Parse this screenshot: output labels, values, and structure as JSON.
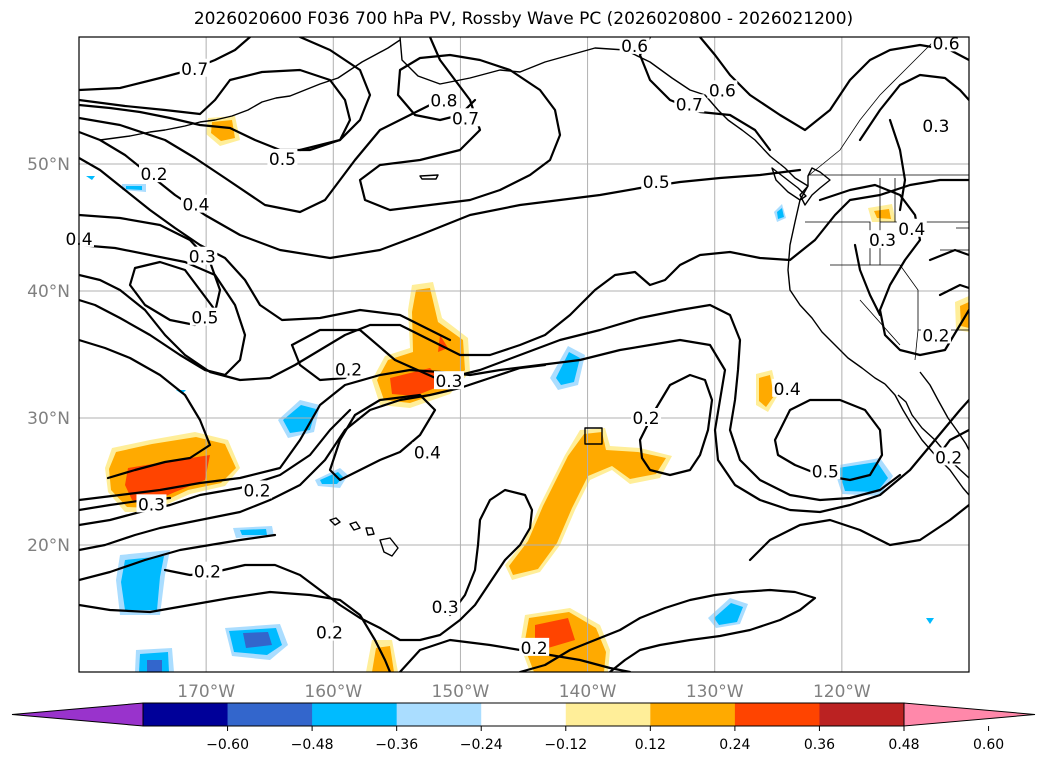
{
  "title": "2026020600 F036 700 hPa PV, Rossby Wave PC (2026020800 - 2026021200)",
  "map": {
    "lon_range": [
      -180,
      -110
    ],
    "lat_range": [
      10,
      60
    ],
    "lat_labels": [
      {
        "lat": 50,
        "text": "50°N"
      },
      {
        "lat": 40,
        "text": "40°N"
      },
      {
        "lat": 30,
        "text": "30°N"
      },
      {
        "lat": 20,
        "text": "20°N"
      }
    ],
    "lon_labels": [
      {
        "lon": -170,
        "text": "170°W"
      },
      {
        "lon": -160,
        "text": "160°W"
      },
      {
        "lon": -150,
        "text": "150°W"
      },
      {
        "lon": -140,
        "text": "140°W"
      },
      {
        "lon": -130,
        "text": "130°W"
      },
      {
        "lon": -120,
        "text": "120°W"
      }
    ],
    "contour_labels": [
      {
        "text": "0.6",
        "lon": -136.3,
        "lat": 59.3
      },
      {
        "text": "0.6",
        "lon": -111.8,
        "lat": 59.5
      },
      {
        "text": "0.7",
        "lon": -170.9,
        "lat": 57.5
      },
      {
        "text": "0.8",
        "lon": -151.3,
        "lat": 55.0
      },
      {
        "text": "0.7",
        "lon": -149.6,
        "lat": 53.6
      },
      {
        "text": "0.7",
        "lon": -132.0,
        "lat": 54.7
      },
      {
        "text": "0.6",
        "lon": -129.4,
        "lat": 55.8
      },
      {
        "text": "0.3",
        "lon": -112.6,
        "lat": 53.0
      },
      {
        "text": "0.5",
        "lon": -164.0,
        "lat": 50.4
      },
      {
        "text": "0.2",
        "lon": -174.1,
        "lat": 49.2
      },
      {
        "text": "0.5",
        "lon": -134.6,
        "lat": 48.6
      },
      {
        "text": "0.4",
        "lon": -170.8,
        "lat": 46.8
      },
      {
        "text": "0.4",
        "lon": -180.0,
        "lat": 44.1
      },
      {
        "text": "0.3",
        "lon": -170.3,
        "lat": 42.7
      },
      {
        "text": "0.3",
        "lon": -116.8,
        "lat": 44.0
      },
      {
        "text": "0.4",
        "lon": -114.5,
        "lat": 44.9
      },
      {
        "text": "0.5",
        "lon": -170.1,
        "lat": 37.9
      },
      {
        "text": "0.2",
        "lon": -112.6,
        "lat": 36.5
      },
      {
        "text": "0.2",
        "lon": -158.8,
        "lat": 33.8
      },
      {
        "text": "0.3",
        "lon": -150.9,
        "lat": 32.9
      },
      {
        "text": "0.4",
        "lon": -124.3,
        "lat": 32.3
      },
      {
        "text": "0.2",
        "lon": -135.4,
        "lat": 30.0
      },
      {
        "text": "0.4",
        "lon": -152.6,
        "lat": 27.3
      },
      {
        "text": "0.5",
        "lon": -121.3,
        "lat": 25.8
      },
      {
        "text": "0.2",
        "lon": -111.6,
        "lat": 26.9
      },
      {
        "text": "0.2",
        "lon": -166.0,
        "lat": 24.3
      },
      {
        "text": "0.3",
        "lon": -174.3,
        "lat": 23.2
      },
      {
        "text": "0.2",
        "lon": -169.9,
        "lat": 17.9
      },
      {
        "text": "0.3",
        "lon": -151.2,
        "lat": 15.1
      },
      {
        "text": "0.2",
        "lon": -160.3,
        "lat": 13.1
      },
      {
        "text": "0.2",
        "lon": -144.2,
        "lat": 11.9
      }
    ]
  },
  "colorbar": {
    "colors": [
      "#9933cc",
      "#000099",
      "#3366cc",
      "#00bbff",
      "#aaddff",
      "#ffffff",
      "#ffee99",
      "#ffaa00",
      "#ff4400",
      "#bb2222",
      "#ff88aa"
    ],
    "ticks": [
      "−0.60",
      "−0.48",
      "−0.36",
      "−0.24",
      "−0.12",
      "0.12",
      "0.24",
      "0.36",
      "0.48",
      "0.60"
    ]
  }
}
